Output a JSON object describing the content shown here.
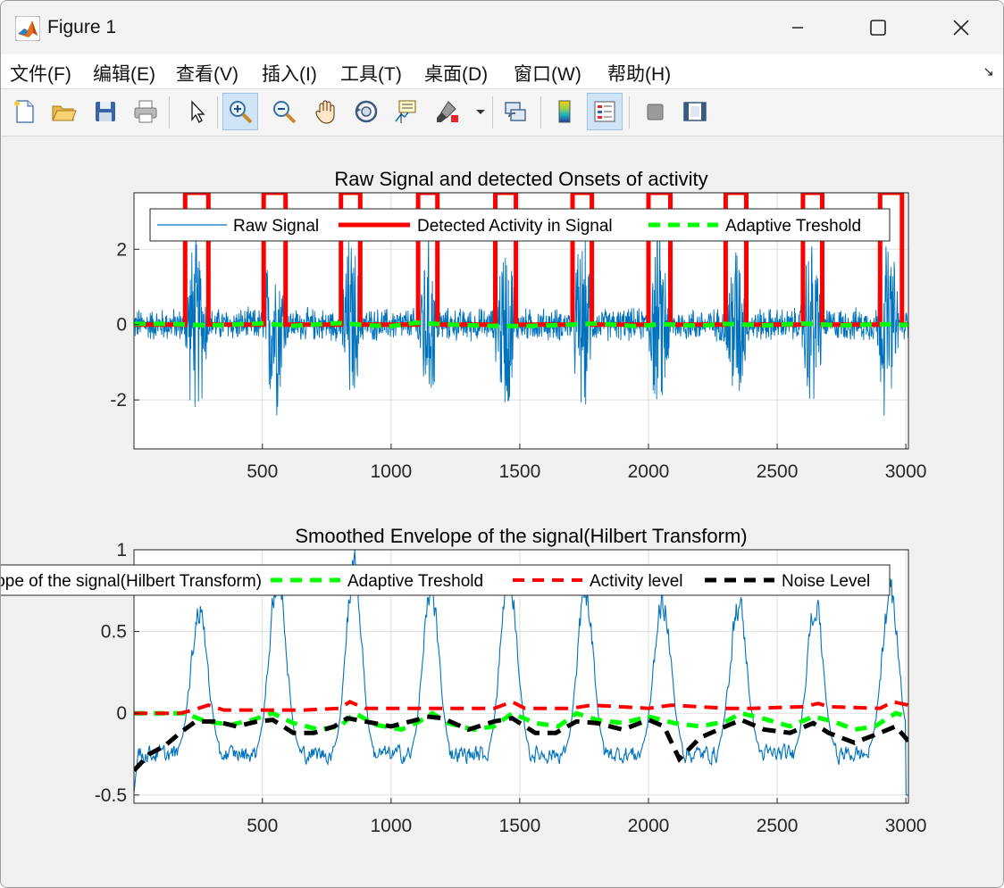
{
  "window": {
    "title": "Figure 1"
  },
  "menu": [
    {
      "label": "文件(F)"
    },
    {
      "label": "编辑(E)"
    },
    {
      "label": "查看(V)"
    },
    {
      "label": "插入(I)"
    },
    {
      "label": "工具(T)"
    },
    {
      "label": "桌面(D)"
    },
    {
      "label": "窗口(W)"
    },
    {
      "label": "帮助(H)"
    }
  ],
  "toolbar": {
    "icons": [
      "new-figure-icon",
      "open-file-icon",
      "save-icon",
      "print-icon",
      "pointer-icon",
      "zoom-in-icon",
      "zoom-out-icon",
      "pan-hand-icon",
      "rotate-3d-icon",
      "data-cursor-icon",
      "brush-icon",
      "brush-dropdown-icon",
      "link-plot-icon",
      "colorbar-icon",
      "legend-icon",
      "hide-plot-tools-icon",
      "show-plot-tools-icon"
    ],
    "active": [
      "zoom-in-icon",
      "legend-icon"
    ]
  },
  "colors": {
    "raw": "#0072bd",
    "activity": "#ff0000",
    "threshold": "#00ff00",
    "noise": "#000000",
    "axes_bg": "#ffffff",
    "figure_bg": "#f0f0f0",
    "grid": "#dfdfdf"
  },
  "chart_data": [
    {
      "type": "line",
      "title": "Raw Signal and detected Onsets of activity",
      "xlabel": "",
      "ylabel": "",
      "xlim": [
        1,
        3010
      ],
      "ylim": [
        -3.3,
        3.5
      ],
      "xticks": [
        500,
        1000,
        1500,
        2000,
        2500,
        3000
      ],
      "xtick_labels": [
        "500",
        "1000",
        "1500",
        "2000",
        "2500",
        "3000"
      ],
      "yticks": [
        -2,
        0,
        2
      ],
      "ytick_labels": [
        "-2",
        "0",
        "2"
      ],
      "grid": true,
      "legend": {
        "placement": "top",
        "orientation": "horizontal",
        "entries": [
          "Raw Signal",
          "Detected Activity in Signal",
          "Adaptive Treshold"
        ]
      },
      "bursts": [
        [
          195,
          290
        ],
        [
          500,
          595
        ],
        [
          800,
          885
        ],
        [
          1100,
          1185
        ],
        [
          1400,
          1490
        ],
        [
          1700,
          1785
        ],
        [
          1995,
          2090
        ],
        [
          2290,
          2385
        ],
        [
          2590,
          2680
        ],
        [
          2880,
          2975
        ]
      ],
      "series": [
        {
          "name": "Raw Signal",
          "style": "thin-solid",
          "color": "#0072bd",
          "baseline_amplitude": 0.5,
          "burst_amplitude": 2.3
        },
        {
          "name": "Detected Activity in Signal",
          "style": "thick-solid",
          "color": "#ff0000",
          "steps": [
            [
              1,
              0
            ],
            [
              200,
              0
            ],
            [
              200,
              3.5
            ],
            [
              290,
              3.5
            ],
            [
              290,
              0
            ],
            [
              505,
              0
            ],
            [
              505,
              3.5
            ],
            [
              590,
              3.5
            ],
            [
              590,
              0
            ],
            [
              805,
              0
            ],
            [
              805,
              3.5
            ],
            [
              880,
              3.5
            ],
            [
              880,
              0
            ],
            [
              1105,
              0
            ],
            [
              1105,
              3.5
            ],
            [
              1180,
              3.5
            ],
            [
              1180,
              0
            ],
            [
              1405,
              0
            ],
            [
              1405,
              3.5
            ],
            [
              1485,
              3.5
            ],
            [
              1485,
              0
            ],
            [
              1705,
              0
            ],
            [
              1705,
              3.5
            ],
            [
              1780,
              3.5
            ],
            [
              1780,
              0
            ],
            [
              2000,
              0
            ],
            [
              2000,
              3.5
            ],
            [
              2085,
              3.5
            ],
            [
              2085,
              0
            ],
            [
              2300,
              0
            ],
            [
              2300,
              3.5
            ],
            [
              2380,
              3.5
            ],
            [
              2380,
              0
            ],
            [
              2600,
              0
            ],
            [
              2600,
              3.5
            ],
            [
              2675,
              3.5
            ],
            [
              2675,
              0
            ],
            [
              2900,
              0
            ],
            [
              2900,
              3.5
            ],
            [
              2985,
              3.5
            ],
            [
              2985,
              0
            ],
            [
              3010,
              0
            ]
          ]
        },
        {
          "name": "Adaptive Treshold",
          "style": "thick-dashed",
          "color": "#00ff00",
          "points": [
            [
              1,
              0.02
            ],
            [
              150,
              0.02
            ],
            [
              200,
              0.0
            ],
            [
              300,
              -0.02
            ],
            [
              420,
              0.01
            ],
            [
              500,
              0.03
            ],
            [
              620,
              -0.03
            ],
            [
              800,
              0.04
            ],
            [
              920,
              -0.02
            ],
            [
              1000,
              -0.04
            ],
            [
              1100,
              0.05
            ],
            [
              1200,
              0.01
            ],
            [
              1350,
              -0.03
            ],
            [
              1500,
              -0.04
            ],
            [
              1620,
              -0.02
            ],
            [
              1700,
              0.0
            ],
            [
              1800,
              0.03
            ],
            [
              1950,
              -0.04
            ],
            [
              2050,
              0.01
            ],
            [
              2200,
              -0.03
            ],
            [
              2300,
              0.02
            ],
            [
              2450,
              -0.02
            ],
            [
              2600,
              0.03
            ],
            [
              2750,
              -0.02
            ],
            [
              2900,
              0.01
            ],
            [
              3010,
              -0.01
            ]
          ]
        }
      ]
    },
    {
      "type": "line",
      "title": "Smoothed Envelope of the signal(Hilbert Transform)",
      "xlabel": "",
      "ylabel": "",
      "xlim": [
        1,
        3010
      ],
      "ylim": [
        -0.55,
        1.0
      ],
      "xticks": [
        500,
        1000,
        1500,
        2000,
        2500,
        3000
      ],
      "xtick_labels": [
        "500",
        "1000",
        "1500",
        "2000",
        "2500",
        "3000"
      ],
      "yticks": [
        -0.5,
        0,
        0.5,
        1
      ],
      "ytick_labels": [
        "-0.5",
        "0",
        "0.5",
        "1"
      ],
      "grid": true,
      "legend": {
        "placement": "top",
        "orientation": "horizontal",
        "clipped_left": true,
        "entries": [
          "Smoothed Envelope of the signal(Hilbert Transform)",
          "Adaptive Treshold",
          "Activity level",
          "Noise Level"
        ]
      },
      "series": [
        {
          "name": "Smoothed Envelope of the signal(Hilbert Transform)",
          "style": "thin-solid",
          "color": "#0072bd",
          "baseline": -0.25,
          "peaks": [
            0.68,
            0.9,
            0.98,
            0.82,
            0.96,
            0.82,
            0.75,
            0.72,
            0.72,
            0.78
          ]
        },
        {
          "name": "Adaptive Treshold",
          "style": "thick-dashed",
          "color": "#00ff00",
          "points": [
            [
              1,
              0.0
            ],
            [
              200,
              0.0
            ],
            [
              280,
              -0.05
            ],
            [
              380,
              -0.07
            ],
            [
              460,
              -0.04
            ],
            [
              540,
              0.0
            ],
            [
              620,
              -0.06
            ],
            [
              720,
              -0.1
            ],
            [
              800,
              -0.08
            ],
            [
              860,
              0.0
            ],
            [
              940,
              -0.07
            ],
            [
              1040,
              -0.1
            ],
            [
              1110,
              -0.05
            ],
            [
              1160,
              0.0
            ],
            [
              1220,
              -0.06
            ],
            [
              1320,
              -0.1
            ],
            [
              1400,
              -0.08
            ],
            [
              1470,
              0.0
            ],
            [
              1560,
              -0.06
            ],
            [
              1650,
              -0.08
            ],
            [
              1720,
              0.0
            ],
            [
              1800,
              -0.04
            ],
            [
              1900,
              -0.06
            ],
            [
              2000,
              -0.02
            ],
            [
              2100,
              -0.06
            ],
            [
              2200,
              -0.08
            ],
            [
              2300,
              -0.05
            ],
            [
              2360,
              0.0
            ],
            [
              2440,
              -0.03
            ],
            [
              2550,
              -0.08
            ],
            [
              2640,
              -0.02
            ],
            [
              2720,
              -0.05
            ],
            [
              2800,
              -0.1
            ],
            [
              2880,
              -0.08
            ],
            [
              2960,
              0.0
            ],
            [
              3010,
              -0.02
            ]
          ]
        },
        {
          "name": "Activity level",
          "style": "thick-dashed",
          "color": "#ff0000",
          "points": [
            [
              1,
              0.0
            ],
            [
              180,
              0.0
            ],
            [
              230,
              0.02
            ],
            [
              290,
              0.05
            ],
            [
              350,
              0.02
            ],
            [
              520,
              0.02
            ],
            [
              580,
              0.02
            ],
            [
              660,
              0.02
            ],
            [
              800,
              0.03
            ],
            [
              840,
              0.07
            ],
            [
              900,
              0.03
            ],
            [
              1100,
              0.03
            ],
            [
              1180,
              0.03
            ],
            [
              1300,
              0.03
            ],
            [
              1400,
              0.03
            ],
            [
              1470,
              0.07
            ],
            [
              1520,
              0.03
            ],
            [
              1700,
              0.03
            ],
            [
              1780,
              0.05
            ],
            [
              2000,
              0.03
            ],
            [
              2090,
              0.05
            ],
            [
              2300,
              0.03
            ],
            [
              2400,
              0.03
            ],
            [
              2600,
              0.04
            ],
            [
              2660,
              0.06
            ],
            [
              2700,
              0.04
            ],
            [
              2900,
              0.03
            ],
            [
              2950,
              0.07
            ],
            [
              3010,
              0.05
            ]
          ]
        },
        {
          "name": "Noise Level",
          "style": "thick-dashed",
          "color": "#000000",
          "points": [
            [
              1,
              -0.35
            ],
            [
              60,
              -0.25
            ],
            [
              120,
              -0.2
            ],
            [
              180,
              -0.12
            ],
            [
              240,
              -0.05
            ],
            [
              320,
              -0.05
            ],
            [
              400,
              -0.08
            ],
            [
              480,
              -0.05
            ],
            [
              540,
              -0.04
            ],
            [
              620,
              -0.12
            ],
            [
              700,
              -0.12
            ],
            [
              780,
              -0.08
            ],
            [
              830,
              -0.03
            ],
            [
              900,
              -0.05
            ],
            [
              1000,
              -0.08
            ],
            [
              1100,
              -0.04
            ],
            [
              1140,
              -0.02
            ],
            [
              1200,
              -0.03
            ],
            [
              1300,
              -0.1
            ],
            [
              1400,
              -0.05
            ],
            [
              1470,
              -0.03
            ],
            [
              1560,
              -0.12
            ],
            [
              1640,
              -0.12
            ],
            [
              1720,
              -0.05
            ],
            [
              1800,
              -0.06
            ],
            [
              1900,
              -0.1
            ],
            [
              2000,
              -0.04
            ],
            [
              2060,
              -0.08
            ],
            [
              2120,
              -0.28
            ],
            [
              2200,
              -0.15
            ],
            [
              2300,
              -0.08
            ],
            [
              2360,
              -0.04
            ],
            [
              2450,
              -0.1
            ],
            [
              2550,
              -0.12
            ],
            [
              2640,
              -0.06
            ],
            [
              2700,
              -0.12
            ],
            [
              2800,
              -0.18
            ],
            [
              2900,
              -0.12
            ],
            [
              2960,
              -0.08
            ],
            [
              3010,
              -0.17
            ]
          ]
        }
      ]
    }
  ]
}
